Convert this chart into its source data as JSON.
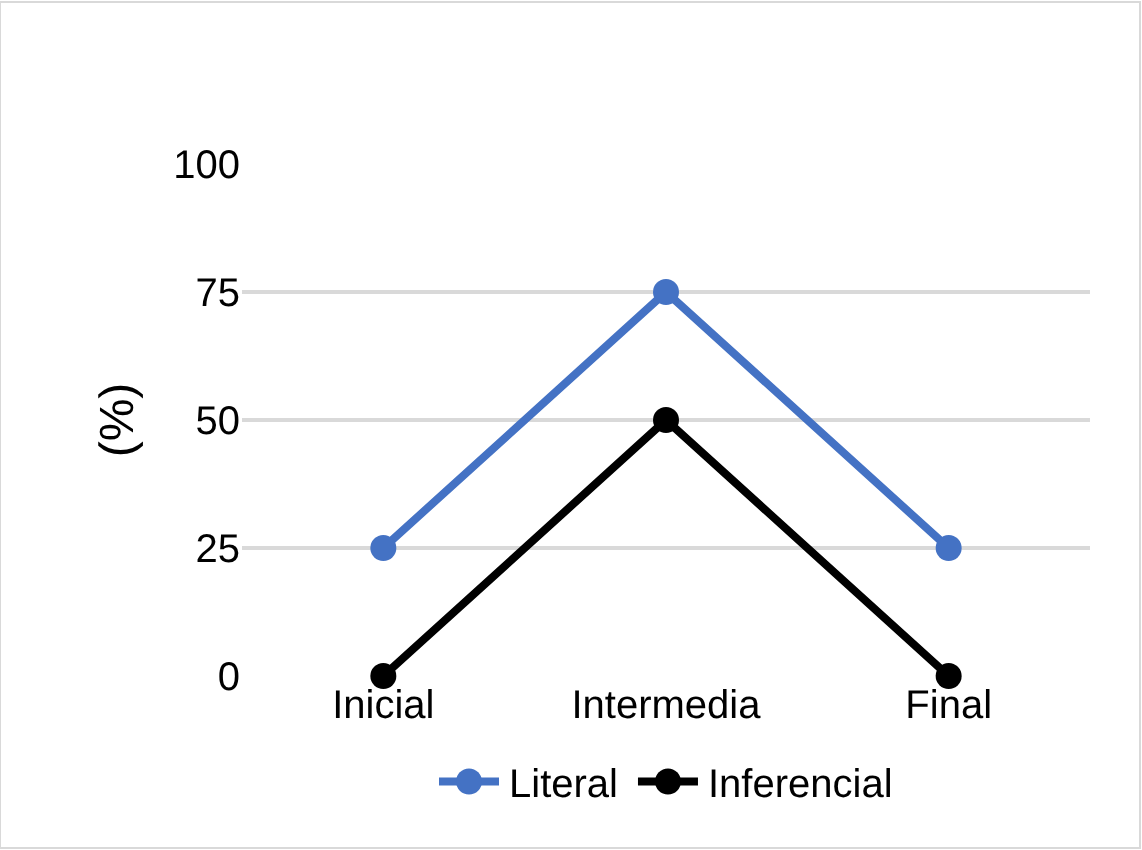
{
  "chart_data": {
    "type": "line",
    "ylabel": "(%)",
    "categories": [
      "Inicial",
      "Intermedia",
      "Final"
    ],
    "series": [
      {
        "name": "Literal",
        "color": "#4472c4",
        "values": [
          25,
          75,
          25
        ]
      },
      {
        "name": "Inferencial",
        "color": "#000000",
        "values": [
          0,
          50,
          0
        ]
      }
    ],
    "ylim": [
      0,
      100
    ],
    "yticks": [
      0,
      25,
      50,
      75,
      100
    ],
    "grid": "y",
    "legend": "bottom",
    "marker": "circle",
    "line_style": "solid"
  }
}
